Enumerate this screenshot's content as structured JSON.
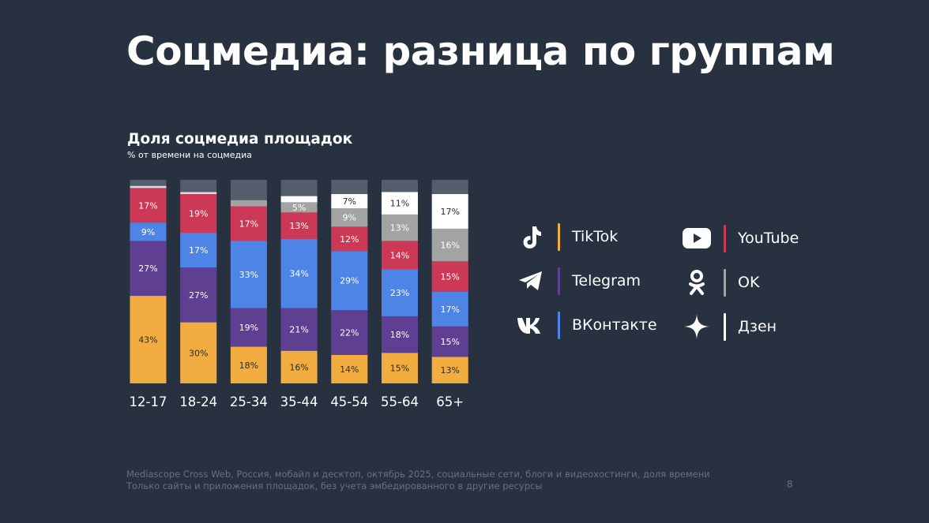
{
  "title": "Соцмедиа: разница по группам",
  "chart_title": "Доля соцмедиа площадок",
  "chart_subtitle": "% от времени на соцмедиа",
  "colors": {
    "background": "#273140",
    "TikTok": "#f1ad3f",
    "Telegram": "#5e3f92",
    "ВКонтакте": "#4d84e6",
    "YouTube": "#cc3957",
    "OK": "#a3a3a3",
    "Дзен": "#ffffff",
    "other": "#545d6b"
  },
  "chart_data": {
    "type": "bar",
    "stacked": true,
    "normalized_to": 100,
    "categories": [
      "12-17",
      "18-24",
      "25-34",
      "35-44",
      "45-54",
      "55-64",
      "65+"
    ],
    "series": [
      {
        "name": "TikTok",
        "values": [
          43,
          30,
          18,
          16,
          14,
          15,
          13
        ]
      },
      {
        "name": "Telegram",
        "values": [
          27,
          27,
          19,
          21,
          22,
          18,
          15
        ]
      },
      {
        "name": "ВКонтакте",
        "values": [
          9,
          17,
          33,
          34,
          29,
          23,
          17
        ]
      },
      {
        "name": "YouTube",
        "values": [
          17,
          19,
          17,
          13,
          12,
          14,
          15
        ]
      },
      {
        "name": "OK",
        "values": [
          0,
          0,
          3,
          5,
          9,
          13,
          16
        ]
      },
      {
        "name": "Дзен",
        "values": [
          1,
          1,
          0,
          3,
          7,
          11,
          17
        ]
      }
    ],
    "value_labels": [
      [
        "43%",
        "30%",
        "18%",
        "16%",
        "14%",
        "15%",
        "13%"
      ],
      [
        "27%",
        "27%",
        "19%",
        "21%",
        "22%",
        "18%",
        "15%"
      ],
      [
        "9%",
        "17%",
        "33%",
        "34%",
        "29%",
        "23%",
        "17%"
      ],
      [
        "17%",
        "19%",
        "17%",
        "13%",
        "12%",
        "14%",
        "15%"
      ],
      [
        "",
        "",
        "",
        "5%",
        "9%",
        "13%",
        "16%"
      ],
      [
        "",
        "",
        "",
        "",
        "7%",
        "11%",
        "17%"
      ]
    ],
    "legend": [
      "TikTok",
      "Telegram",
      "ВКонтакте",
      "YouTube",
      "OK",
      "Дзен"
    ],
    "legend_position": "right",
    "grid": false
  },
  "legend_items": [
    {
      "name": "TikTok",
      "icon": "tiktok-icon"
    },
    {
      "name": "Telegram",
      "icon": "telegram-icon"
    },
    {
      "name": "ВКонтакте",
      "icon": "vk-icon"
    },
    {
      "name": "YouTube",
      "icon": "youtube-icon"
    },
    {
      "name": "OK",
      "icon": "ok-icon"
    },
    {
      "name": "Дзен",
      "icon": "dzen-icon"
    }
  ],
  "footnote": {
    "line1": "Mediascope Cross Web, Россия, мобайл и десктоп, октябрь 2025, социальные сети, блоги и видеохостинги, доля времени",
    "line2": "Только сайты и приложения площадок, без учета эмбедированного в другие ресурсы"
  },
  "page_number": "8"
}
